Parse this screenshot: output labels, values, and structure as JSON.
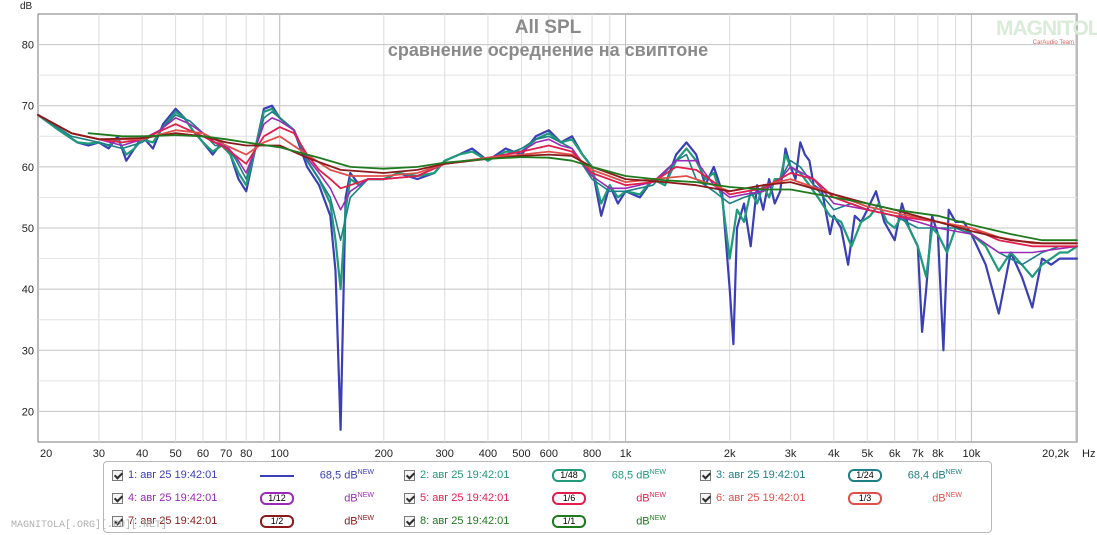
{
  "chart_data": {
    "type": "line",
    "title": "All SPL",
    "subtitle": "сравнение осреднение на свиптоне",
    "ylabel": "dB",
    "xlabel": "Hz",
    "x_scale": "log",
    "xlim": [
      20,
      20200
    ],
    "ylim": [
      15,
      85
    ],
    "x_ticks": [
      {
        "v": 20,
        "t": "20"
      },
      {
        "v": 30,
        "t": "30"
      },
      {
        "v": 40,
        "t": "40"
      },
      {
        "v": 50,
        "t": "50"
      },
      {
        "v": 60,
        "t": "60"
      },
      {
        "v": 70,
        "t": "70"
      },
      {
        "v": 80,
        "t": "80"
      },
      {
        "v": 100,
        "t": "100"
      },
      {
        "v": 200,
        "t": "200"
      },
      {
        "v": 300,
        "t": "300"
      },
      {
        "v": 400,
        "t": "400"
      },
      {
        "v": 500,
        "t": "500"
      },
      {
        "v": 600,
        "t": "600"
      },
      {
        "v": 800,
        "t": "800"
      },
      {
        "v": 1000,
        "t": "1k"
      },
      {
        "v": 2000,
        "t": "2k"
      },
      {
        "v": 3000,
        "t": "3k"
      },
      {
        "v": 4000,
        "t": "4k"
      },
      {
        "v": 5000,
        "t": "5k"
      },
      {
        "v": 6000,
        "t": "6k"
      },
      {
        "v": 7000,
        "t": "7k"
      },
      {
        "v": 8000,
        "t": "8k"
      },
      {
        "v": 10000,
        "t": "10k"
      },
      {
        "v": 20200,
        "t": "20,2k"
      }
    ],
    "y_ticks": [
      20,
      30,
      40,
      50,
      60,
      70,
      80
    ],
    "grid": true,
    "series": [
      {
        "name": "1: авг 25 19:42:01",
        "color": "#3a3fb5",
        "width": 2.2,
        "x": [
          20,
          23,
          26,
          28,
          30,
          32,
          34,
          36,
          38,
          40,
          43,
          46,
          50,
          53,
          56,
          60,
          64,
          68,
          72,
          76,
          80,
          85,
          90,
          95,
          100,
          110,
          120,
          130,
          140,
          145,
          150,
          155,
          160,
          170,
          180,
          200,
          220,
          250,
          280,
          300,
          330,
          360,
          400,
          450,
          500,
          550,
          600,
          650,
          700,
          750,
          800,
          850,
          900,
          950,
          1000,
          1100,
          1200,
          1300,
          1400,
          1500,
          1600,
          1700,
          1800,
          1900,
          2000,
          2050,
          2100,
          2200,
          2300,
          2400,
          2500,
          2600,
          2700,
          2800,
          2900,
          3000,
          3100,
          3200,
          3300,
          3400,
          3500,
          3700,
          3900,
          4000,
          4200,
          4400,
          4600,
          4800,
          5000,
          5300,
          5600,
          6000,
          6300,
          6600,
          7000,
          7200,
          7400,
          7700,
          8000,
          8300,
          8600,
          9000,
          9500,
          10000,
          11000,
          12000,
          13000,
          14000,
          15000,
          16000,
          17000,
          18000,
          19000,
          20200
        ],
        "y": [
          68.5,
          66,
          64,
          63.5,
          64,
          63,
          65,
          61,
          63,
          65,
          63,
          67,
          69.5,
          68,
          66,
          64,
          62,
          64,
          62,
          58,
          56,
          63,
          69.5,
          70,
          68,
          66,
          60,
          57,
          52,
          43,
          17,
          55,
          59,
          57,
          58,
          58,
          59,
          58,
          59,
          61,
          62,
          63,
          61,
          63,
          62,
          65,
          66,
          64,
          65,
          62,
          60,
          52,
          57,
          54,
          56,
          55,
          58,
          57,
          62,
          64,
          62,
          57,
          60,
          56,
          40,
          31,
          50,
          54,
          47,
          57,
          53,
          58,
          54,
          56,
          63,
          60,
          58,
          64,
          62,
          61,
          57,
          56,
          49,
          52,
          50,
          44,
          52,
          51,
          53,
          56,
          51,
          48,
          54,
          50,
          47,
          33,
          40,
          52,
          49,
          30,
          53,
          51,
          51,
          49,
          44,
          36,
          46,
          42,
          37,
          45,
          44,
          45,
          45,
          45
        ]
      },
      {
        "name": "2: авг 25 19:42:01",
        "color": "#1f9a7a",
        "width": 2.2,
        "x": [
          20,
          23,
          26,
          28,
          30,
          32,
          34,
          36,
          38,
          40,
          43,
          46,
          50,
          53,
          56,
          60,
          64,
          68,
          72,
          76,
          80,
          85,
          90,
          95,
          100,
          110,
          120,
          130,
          140,
          145,
          150,
          155,
          160,
          170,
          180,
          200,
          220,
          250,
          280,
          300,
          330,
          360,
          400,
          450,
          500,
          550,
          600,
          650,
          700,
          750,
          800,
          850,
          900,
          950,
          1000,
          1100,
          1200,
          1300,
          1400,
          1500,
          1600,
          1700,
          1800,
          1900,
          2000,
          2100,
          2200,
          2300,
          2400,
          2500,
          2600,
          2700,
          2800,
          2900,
          3000,
          3200,
          3400,
          3600,
          3900,
          4200,
          4500,
          4800,
          5100,
          5400,
          5700,
          6000,
          6300,
          6600,
          7000,
          7400,
          7700,
          8000,
          8500,
          9000,
          9500,
          10000,
          11000,
          12000,
          13000,
          14000,
          15000,
          16000,
          17000,
          18000,
          19000,
          20200
        ],
        "y": [
          68.5,
          66,
          64,
          63.8,
          64,
          63.5,
          64.5,
          62,
          63,
          64.5,
          64,
          66.5,
          69,
          68,
          66,
          64,
          62.5,
          63.5,
          62,
          59,
          57,
          63,
          69,
          69.5,
          68,
          66,
          61,
          58,
          54,
          48,
          40,
          53,
          58,
          57,
          58,
          58,
          59,
          58.5,
          59,
          61,
          62,
          62.5,
          61,
          62.5,
          62.5,
          64.5,
          65.5,
          64,
          64.5,
          62,
          60,
          54,
          57,
          55,
          56,
          55.5,
          58,
          57,
          61,
          63,
          61,
          58,
          59,
          55,
          45,
          53,
          51,
          56,
          54,
          57,
          55,
          58,
          58,
          62,
          60,
          59,
          57,
          55,
          52,
          51,
          47,
          51,
          52,
          54,
          51,
          50,
          52,
          50,
          47,
          42,
          50,
          49,
          46,
          50,
          50,
          49,
          47,
          43,
          46,
          44,
          42,
          44,
          45,
          46,
          46,
          47
        ]
      },
      {
        "name": "3: авг 25 19:42:01",
        "color": "#1f7f86",
        "width": 1.6,
        "x": [
          20,
          25,
          30,
          35,
          40,
          45,
          50,
          55,
          60,
          65,
          70,
          75,
          80,
          85,
          90,
          95,
          100,
          110,
          120,
          130,
          140,
          150,
          160,
          180,
          200,
          250,
          300,
          350,
          400,
          450,
          500,
          550,
          600,
          650,
          700,
          800,
          900,
          1000,
          1200,
          1400,
          1500,
          1600,
          1800,
          2000,
          2200,
          2500,
          2800,
          3000,
          3200,
          3500,
          4000,
          4500,
          5000,
          6000,
          7000,
          8000,
          9000,
          10000,
          12000,
          14000,
          16000,
          18000,
          20200
        ],
        "y": [
          68.5,
          65,
          64,
          63,
          64,
          66,
          68.5,
          67.5,
          65.5,
          63.5,
          63.5,
          61,
          58,
          63,
          68,
          69,
          68,
          66,
          61,
          58,
          55,
          48,
          55,
          58,
          58,
          58.5,
          60.5,
          61,
          61.5,
          62,
          63,
          64.5,
          65,
          64,
          63,
          58,
          56,
          56,
          57,
          61,
          62,
          58,
          56,
          54,
          55,
          56,
          58,
          61,
          60,
          57,
          53,
          54,
          53,
          52,
          50,
          50,
          50,
          49,
          46,
          44,
          46,
          47,
          47
        ]
      },
      {
        "name": "4: авг 25 19:42:01",
        "color": "#9b2ab8",
        "width": 1.6,
        "x": [
          20,
          25,
          30,
          35,
          40,
          45,
          50,
          55,
          60,
          65,
          70,
          75,
          80,
          85,
          90,
          95,
          100,
          110,
          120,
          130,
          140,
          150,
          160,
          180,
          200,
          250,
          300,
          350,
          400,
          450,
          500,
          550,
          600,
          650,
          700,
          800,
          900,
          1000,
          1200,
          1400,
          1600,
          1800,
          2000,
          2200,
          2500,
          2800,
          3000,
          3500,
          4000,
          5000,
          6000,
          7000,
          8000,
          10000,
          12000,
          15000,
          20200
        ],
        "y": [
          68.5,
          65.5,
          64.5,
          63.5,
          64.5,
          66,
          68,
          67,
          65.5,
          64,
          63.5,
          61.5,
          59,
          63,
          67,
          68,
          67.5,
          66,
          61.5,
          59,
          56.5,
          53,
          56,
          58,
          58,
          58.5,
          60.5,
          61,
          61.5,
          62,
          62.5,
          64,
          64.5,
          63.5,
          63,
          58.5,
          56.5,
          56.5,
          57.5,
          61,
          61,
          57,
          55,
          55.5,
          56,
          58,
          60,
          58,
          54,
          53,
          52,
          51,
          50,
          49,
          46,
          46,
          47
        ]
      },
      {
        "name": "5: авг 25 19:42:01",
        "color": "#e11e4d",
        "width": 1.8,
        "x": [
          20,
          25,
          30,
          35,
          40,
          50,
          60,
          70,
          80,
          90,
          100,
          110,
          120,
          130,
          140,
          150,
          160,
          180,
          200,
          250,
          300,
          400,
          500,
          600,
          700,
          800,
          1000,
          1200,
          1400,
          1600,
          1800,
          2000,
          2500,
          3000,
          3500,
          4000,
          5000,
          6000,
          8000,
          10000,
          12000,
          15000,
          20200
        ],
        "y": [
          68.5,
          65.5,
          64.5,
          64,
          64.5,
          67,
          65,
          63,
          60.5,
          65,
          66.5,
          65.5,
          62,
          59.5,
          58,
          56.5,
          57,
          58,
          58,
          58.5,
          60.5,
          61.5,
          62.5,
          63.5,
          62.5,
          59,
          57,
          57.5,
          60,
          59.5,
          57.5,
          55.5,
          56.5,
          59,
          58,
          55,
          53,
          52,
          51,
          50,
          48,
          47,
          47
        ]
      },
      {
        "name": "6: авг 25 19:42:01",
        "color": "#e0504a",
        "width": 1.8,
        "x": [
          20,
          25,
          30,
          40,
          50,
          60,
          70,
          80,
          90,
          100,
          120,
          140,
          160,
          200,
          250,
          300,
          400,
          500,
          600,
          700,
          800,
          1000,
          1200,
          1500,
          1800,
          2000,
          2500,
          3000,
          4000,
          5000,
          6000,
          8000,
          10000,
          12000,
          15000,
          20200
        ],
        "y": [
          68.5,
          65.5,
          64.5,
          64.5,
          66,
          65.5,
          63.5,
          62,
          64,
          65,
          62,
          59.5,
          58.5,
          58.5,
          59,
          60.5,
          61.5,
          62,
          62.5,
          62,
          59.5,
          57.5,
          58,
          58.5,
          57,
          56,
          57,
          58,
          55.5,
          53.5,
          52.5,
          51,
          50,
          48.5,
          47.5,
          47.5
        ]
      },
      {
        "name": "7: авг 25 19:42:01",
        "color": "#8b1a1a",
        "width": 1.8,
        "x": [
          20,
          25,
          30,
          40,
          50,
          60,
          70,
          80,
          90,
          100,
          120,
          150,
          200,
          250,
          300,
          400,
          500,
          600,
          700,
          800,
          1000,
          1300,
          1600,
          2000,
          2500,
          3000,
          4000,
          5000,
          6000,
          8000,
          10000,
          13000,
          16000,
          20200
        ],
        "y": [
          68.5,
          65.5,
          64.5,
          64.7,
          65.5,
          65,
          64,
          63.5,
          63.5,
          63.5,
          61.5,
          59.5,
          59,
          59.5,
          60.5,
          61.3,
          61.8,
          62,
          61.8,
          60,
          58,
          57.5,
          57,
          56,
          57,
          57.5,
          55.5,
          54,
          53,
          51,
          49.5,
          48,
          47.5,
          47.5
        ]
      },
      {
        "name": "8: авг 25 19:42:01",
        "color": "#1f7a1f",
        "width": 1.8,
        "x": [
          28,
          35,
          40,
          50,
          60,
          70,
          80,
          100,
          130,
          160,
          200,
          250,
          300,
          400,
          500,
          600,
          700,
          800,
          1000,
          1300,
          1600,
          2000,
          2500,
          3000,
          4000,
          5000,
          6000,
          8000,
          10000,
          13000,
          16000,
          20200
        ],
        "y": [
          65.5,
          65,
          65,
          65.2,
          65,
          64.5,
          64,
          63.2,
          61.5,
          60,
          59.7,
          60,
          60.7,
          61.3,
          61.6,
          61.5,
          61,
          60,
          58.5,
          57.8,
          57.5,
          56.7,
          56.3,
          56.3,
          55,
          54,
          53,
          52,
          50.5,
          49,
          48,
          48
        ]
      }
    ]
  },
  "legend": {
    "items": [
      {
        "label": "1: авг 25 19:42:01",
        "value": "68,5 dB",
        "sup": "NEW",
        "swatch": "",
        "color": "#3a3fb5",
        "line": true
      },
      {
        "label": "2: авг 25 19:42:01",
        "value": "68,5 dB",
        "sup": "NEW",
        "swatch": "1/48",
        "color": "#1f9a7a",
        "line": false
      },
      {
        "label": "3: авг 25 19:42:01",
        "value": "68,4 dB",
        "sup": "NEW",
        "swatch": "1/24",
        "color": "#1f7f86",
        "line": false
      },
      {
        "label": "4: авг 25 19:42:01",
        "value": "dB",
        "sup": "NEW",
        "swatch": "1/12",
        "color": "#9b2ab8",
        "line": false
      },
      {
        "label": "5: авг 25 19:42:01",
        "value": "dB",
        "sup": "NEW",
        "swatch": "1/6",
        "color": "#e11e4d",
        "line": false
      },
      {
        "label": "6: авг 25 19:42:01",
        "value": "dB",
        "sup": "NEW",
        "swatch": "1/3",
        "color": "#e0504a",
        "line": false
      },
      {
        "label": "7: авг 25 19:42:01",
        "value": "dB",
        "sup": "NEW",
        "swatch": "1/2",
        "color": "#8b1a1a",
        "line": false
      },
      {
        "label": "8: авг 25 19:42:01",
        "value": "dB",
        "sup": "NEW",
        "swatch": "1/1",
        "color": "#1f7a1f",
        "line": false
      }
    ]
  },
  "logo": {
    "text": "MAGNITOLA",
    "sub": "CarAudio Team"
  },
  "watermark": "MAGNITOLA[.ORG][.RU][.NET]"
}
